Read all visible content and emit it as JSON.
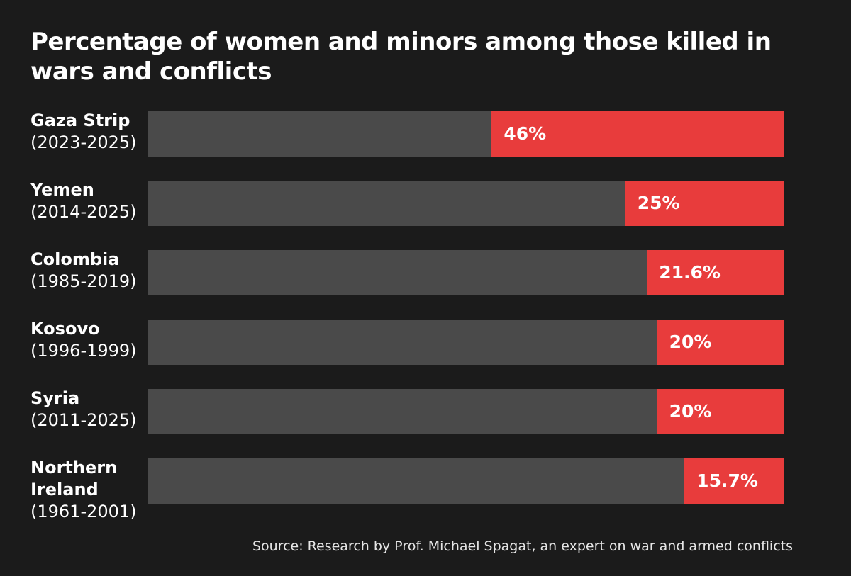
{
  "chart_data": {
    "type": "bar",
    "orientation": "horizontal",
    "title": "Percentage of women and minors among those killed in wars and conflicts",
    "categories": [
      {
        "name": "Gaza Strip",
        "years": "(2023-2025)"
      },
      {
        "name": "Yemen",
        "years": "(2014-2025)"
      },
      {
        "name": "Colombia",
        "years": "(1985-2019)"
      },
      {
        "name": "Kosovo",
        "years": "(1996-1999)"
      },
      {
        "name": "Syria",
        "years": "(2011-2025)"
      },
      {
        "name": "Northern Ireland",
        "years": "(1961-2001)"
      }
    ],
    "values": [
      46,
      25,
      21.6,
      20,
      20,
      15.7
    ],
    "labels": [
      "46%",
      "25%",
      "21.6%",
      "20%",
      "20%",
      "15.7%"
    ],
    "unit": "%",
    "xlim": [
      0,
      100
    ],
    "grid": false,
    "source": "Source: Research by Prof. Michael Spagat, an expert on war and armed conflicts",
    "colors": {
      "background": "#1b1b1b",
      "track": "#4a4a4a",
      "highlight": "#e83c3c",
      "text": "#ffffff"
    }
  }
}
